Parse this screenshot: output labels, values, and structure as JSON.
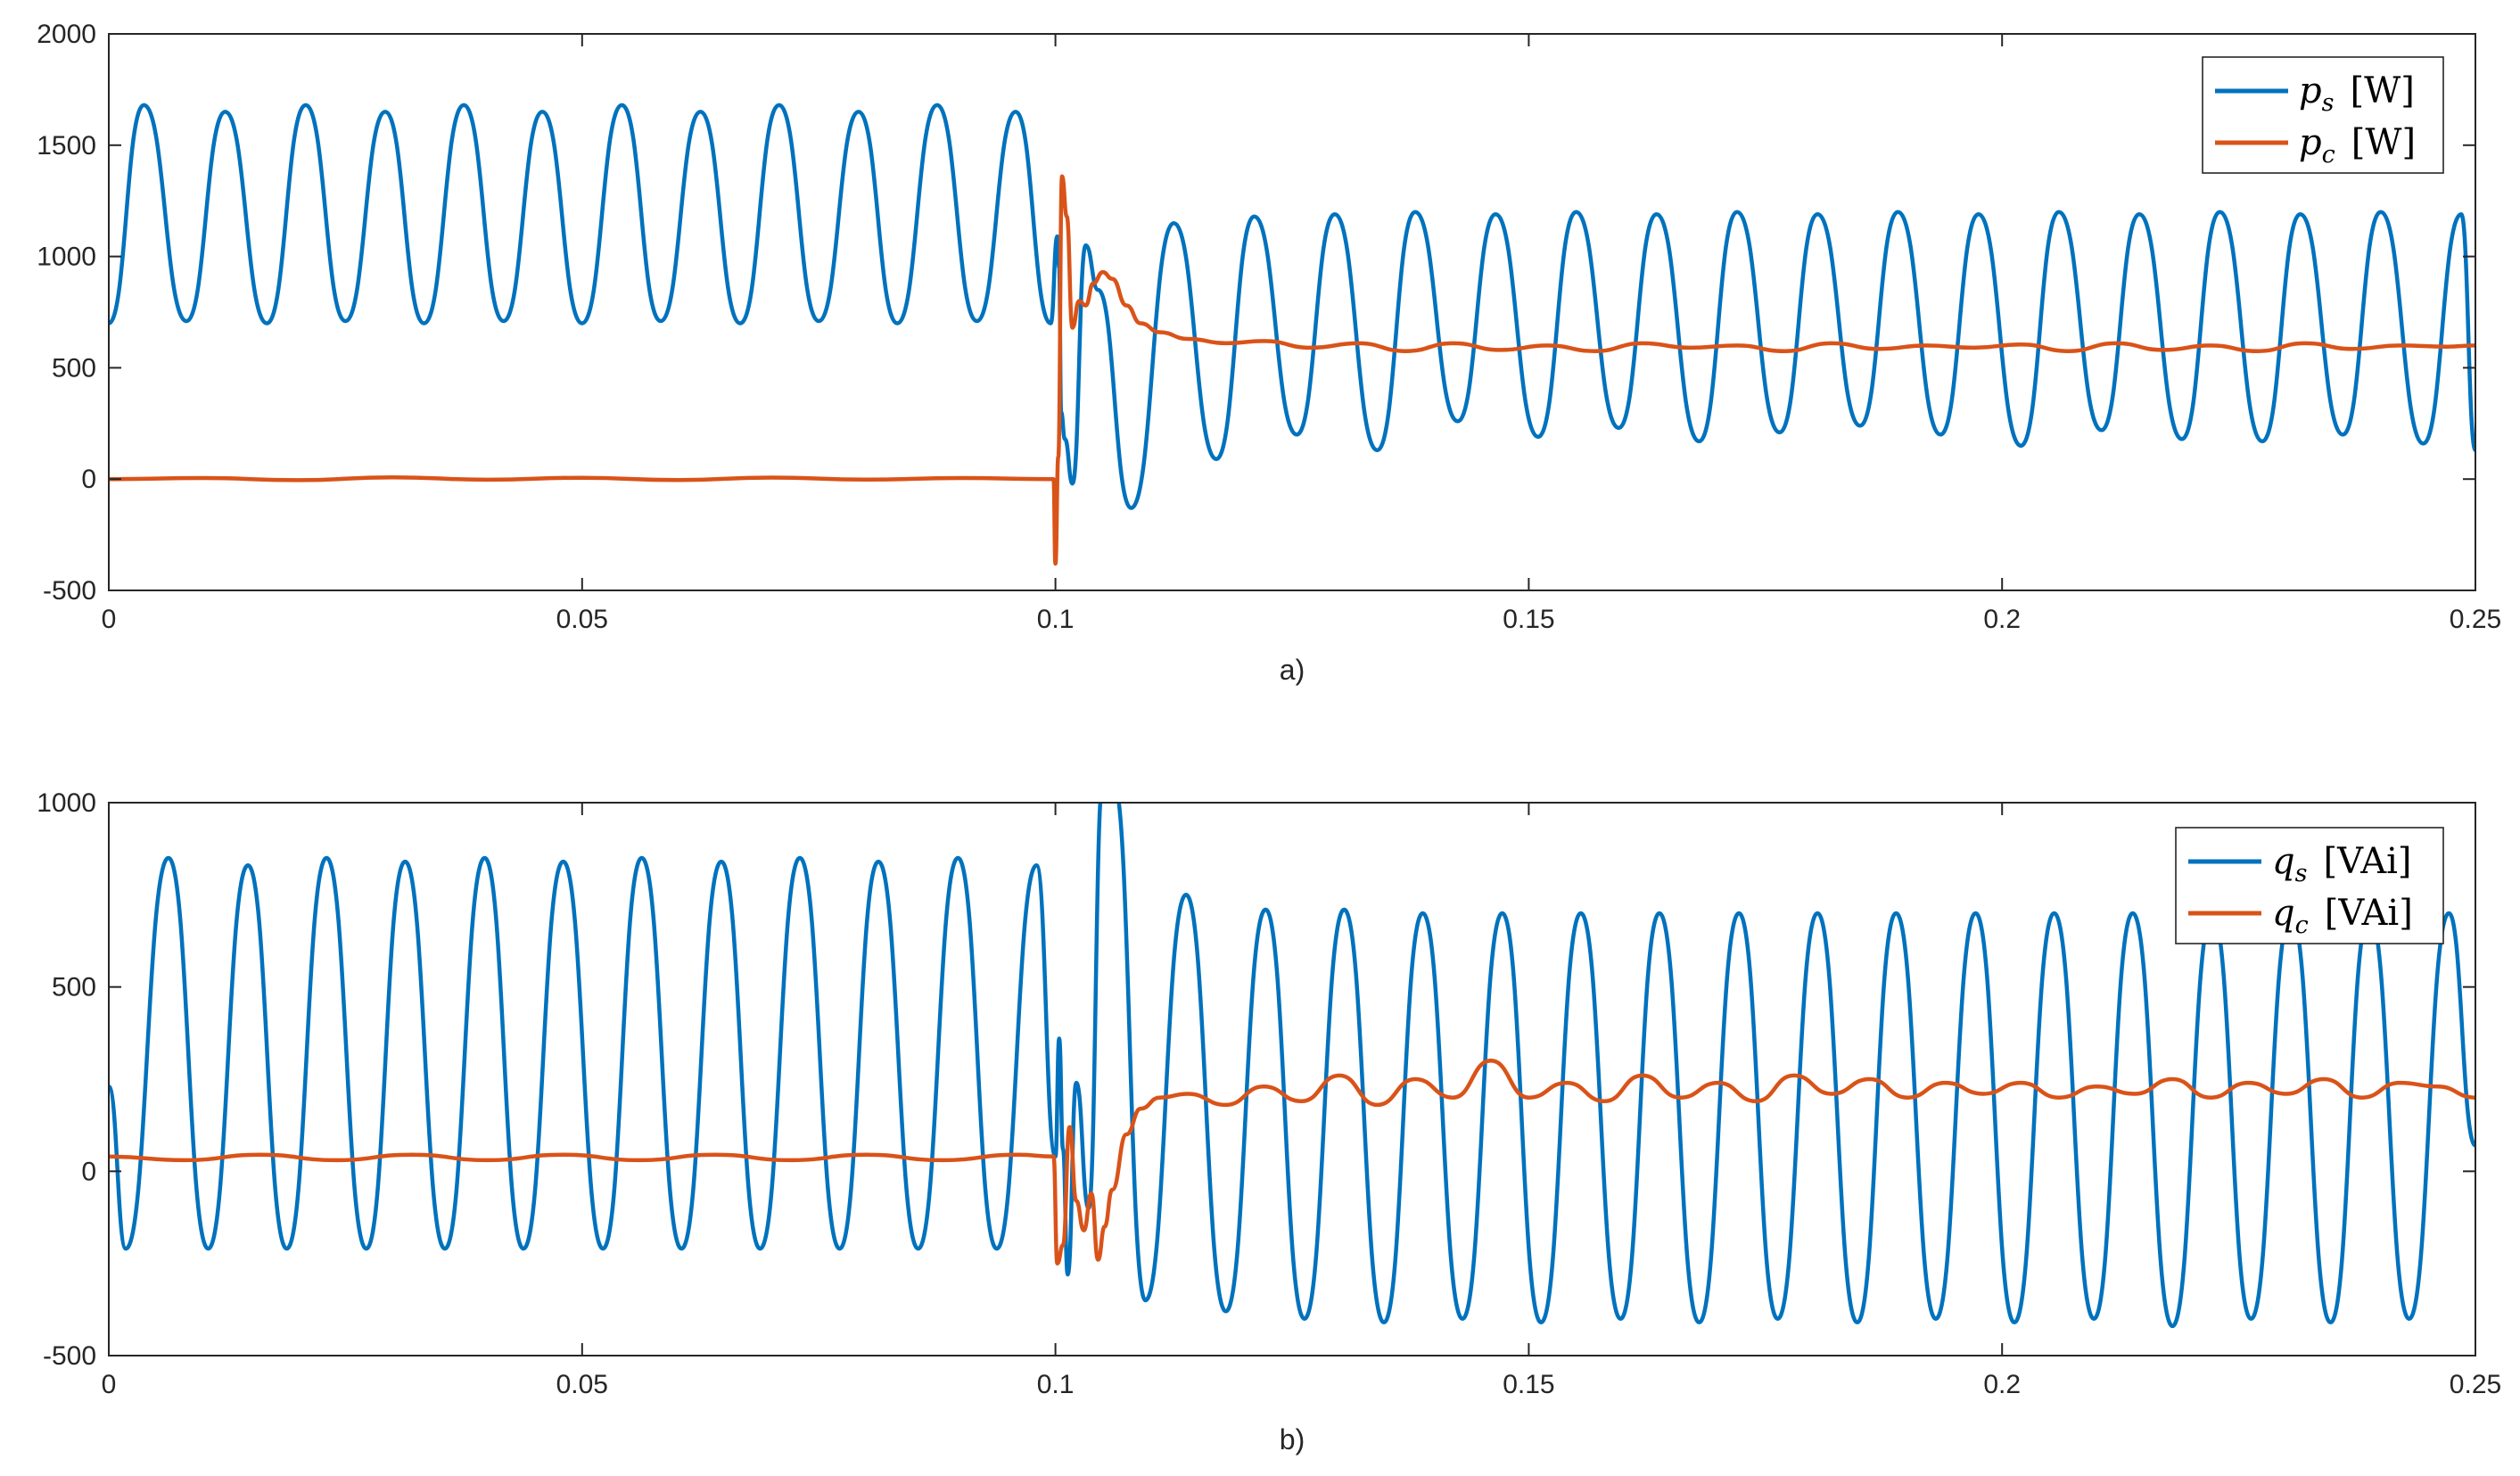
{
  "colors": {
    "series_s": "#0072BD",
    "series_c": "#D95319",
    "axis": "#262626",
    "background": "#ffffff"
  },
  "chart_data": [
    {
      "type": "line",
      "caption": "a)",
      "xlim": [
        0,
        0.25
      ],
      "ylim": [
        -500,
        2000
      ],
      "xticks": [
        "0",
        "0.05",
        "0.1",
        "0.15",
        "0.2",
        "0.25"
      ],
      "yticks": [
        "-500",
        "0",
        "500",
        "1000",
        "1500",
        "2000"
      ],
      "grid": false,
      "legend_position": "top-right",
      "series": [
        {
          "name": "p_s [W]",
          "legend": {
            "var": "p",
            "sub": "s",
            "unit": "[W]"
          },
          "color": "#0072BD",
          "x": [
            0,
            0.0037,
            0.0082,
            0.0123,
            0.0167,
            0.0208,
            0.025,
            0.0292,
            0.0333,
            0.0375,
            0.0417,
            0.0458,
            0.05,
            0.0542,
            0.0583,
            0.0625,
            0.0667,
            0.0708,
            0.075,
            0.0792,
            0.0833,
            0.0875,
            0.0917,
            0.0958,
            0.0995,
            0.1002,
            0.1004,
            0.1006,
            0.101,
            0.1018,
            0.1032,
            0.1045,
            0.108,
            0.1125,
            0.117,
            0.121,
            0.1255,
            0.1295,
            0.134,
            0.138,
            0.1425,
            0.1465,
            0.151,
            0.155,
            0.1595,
            0.1635,
            0.168,
            0.172,
            0.1765,
            0.1805,
            0.185,
            0.189,
            0.1935,
            0.1975,
            0.202,
            0.206,
            0.2105,
            0.2145,
            0.219,
            0.223,
            0.2275,
            0.2315,
            0.236,
            0.24,
            0.2445,
            0.2485,
            0.25
          ],
          "y": [
            700,
            1680,
            710,
            1650,
            700,
            1680,
            710,
            1650,
            700,
            1680,
            710,
            1650,
            700,
            1680,
            710,
            1650,
            700,
            1680,
            710,
            1650,
            700,
            1680,
            710,
            1650,
            700,
            1090,
            950,
            300,
            180,
            -20,
            1050,
            850,
            -130,
            1150,
            90,
            1180,
            200,
            1190,
            130,
            1200,
            260,
            1190,
            190,
            1200,
            230,
            1190,
            170,
            1200,
            210,
            1190,
            240,
            1200,
            200,
            1190,
            150,
            1200,
            220,
            1190,
            180,
            1200,
            170,
            1190,
            200,
            1200,
            160,
            1190,
            130
          ]
        },
        {
          "name": "p_c [W]",
          "legend": {
            "var": "p",
            "sub": "c",
            "unit": "[W]"
          },
          "color": "#D95319",
          "x": [
            0,
            0.01,
            0.02,
            0.03,
            0.04,
            0.05,
            0.06,
            0.07,
            0.08,
            0.09,
            0.0998,
            0.1,
            0.1003,
            0.1007,
            0.1012,
            0.1018,
            0.1025,
            0.1032,
            0.104,
            0.105,
            0.106,
            0.1075,
            0.109,
            0.111,
            0.114,
            0.118,
            0.122,
            0.127,
            0.132,
            0.137,
            0.142,
            0.147,
            0.152,
            0.157,
            0.162,
            0.167,
            0.172,
            0.177,
            0.182,
            0.187,
            0.192,
            0.197,
            0.202,
            0.207,
            0.212,
            0.217,
            0.222,
            0.227,
            0.232,
            0.237,
            0.242,
            0.247,
            0.25
          ],
          "y": [
            0,
            5,
            -5,
            8,
            -3,
            6,
            -4,
            7,
            -2,
            5,
            0,
            -380,
            100,
            1360,
            1180,
            680,
            800,
            780,
            880,
            930,
            900,
            780,
            700,
            660,
            630,
            610,
            620,
            590,
            610,
            575,
            610,
            580,
            600,
            575,
            610,
            590,
            600,
            575,
            610,
            585,
            600,
            590,
            605,
            575,
            610,
            580,
            600,
            575,
            610,
            585,
            600,
            595,
            600
          ]
        }
      ]
    },
    {
      "type": "line",
      "caption": "b)",
      "xlim": [
        0,
        0.25
      ],
      "ylim": [
        -500,
        1000
      ],
      "xticks": [
        "0",
        "0.05",
        "0.1",
        "0.15",
        "0.2",
        "0.25"
      ],
      "yticks": [
        "-500",
        "0",
        "500",
        "1000"
      ],
      "grid": false,
      "legend_position": "top-right",
      "series": [
        {
          "name": "q_s [VAi]",
          "legend": {
            "var": "q",
            "sub": "s",
            "unit": "[VAi]"
          },
          "color": "#0072BD",
          "x": [
            0,
            0.0018,
            0.0063,
            0.0105,
            0.0147,
            0.0188,
            0.023,
            0.0272,
            0.0313,
            0.0355,
            0.0397,
            0.0438,
            0.048,
            0.0522,
            0.0563,
            0.0605,
            0.0647,
            0.0688,
            0.073,
            0.0772,
            0.0813,
            0.0855,
            0.0897,
            0.0938,
            0.098,
            0.1,
            0.1004,
            0.1008,
            0.1013,
            0.1022,
            0.1035,
            0.105,
            0.1062,
            0.1095,
            0.1138,
            0.118,
            0.1222,
            0.1263,
            0.1305,
            0.1347,
            0.1388,
            0.143,
            0.1472,
            0.1513,
            0.1555,
            0.1597,
            0.1638,
            0.168,
            0.1722,
            0.1763,
            0.1805,
            0.1847,
            0.1888,
            0.193,
            0.1972,
            0.2013,
            0.2055,
            0.2097,
            0.2138,
            0.218,
            0.2222,
            0.2263,
            0.2305,
            0.2347,
            0.2388,
            0.243,
            0.2472,
            0.25
          ],
          "y": [
            230,
            -210,
            850,
            -210,
            830,
            -210,
            850,
            -210,
            840,
            -210,
            850,
            -210,
            840,
            -210,
            850,
            -210,
            840,
            -210,
            850,
            -210,
            840,
            -210,
            850,
            -210,
            830,
            40,
            360,
            60,
            -280,
            240,
            -100,
            1060,
            1050,
            -350,
            750,
            -380,
            710,
            -400,
            710,
            -410,
            700,
            -400,
            700,
            -410,
            700,
            -400,
            700,
            -410,
            700,
            -400,
            700,
            -410,
            700,
            -400,
            700,
            -410,
            700,
            -400,
            700,
            -420,
            700,
            -400,
            700,
            -410,
            700,
            -400,
            700,
            70
          ]
        },
        {
          "name": "q_c [VAi]",
          "legend": {
            "var": "q",
            "sub": "c",
            "unit": "[VAi]"
          },
          "color": "#D95319",
          "x": [
            0,
            0.008,
            0.016,
            0.024,
            0.032,
            0.04,
            0.048,
            0.056,
            0.064,
            0.072,
            0.08,
            0.088,
            0.096,
            0.0998,
            0.1002,
            0.1008,
            0.1015,
            0.1022,
            0.103,
            0.1038,
            0.1045,
            0.1052,
            0.106,
            0.1075,
            0.109,
            0.111,
            0.114,
            0.118,
            0.122,
            0.126,
            0.13,
            0.134,
            0.138,
            0.142,
            0.146,
            0.15,
            0.154,
            0.158,
            0.162,
            0.166,
            0.17,
            0.174,
            0.178,
            0.182,
            0.186,
            0.19,
            0.194,
            0.198,
            0.202,
            0.206,
            0.21,
            0.214,
            0.218,
            0.222,
            0.226,
            0.23,
            0.234,
            0.238,
            0.242,
            0.246,
            0.25
          ],
          "y": [
            40,
            30,
            45,
            30,
            45,
            30,
            45,
            30,
            45,
            30,
            45,
            30,
            45,
            40,
            -250,
            -200,
            120,
            -80,
            -160,
            -60,
            -240,
            -150,
            -50,
            100,
            170,
            200,
            210,
            180,
            230,
            190,
            260,
            180,
            250,
            200,
            300,
            200,
            240,
            190,
            260,
            200,
            240,
            190,
            260,
            210,
            250,
            200,
            240,
            210,
            240,
            200,
            230,
            210,
            250,
            200,
            240,
            210,
            250,
            200,
            240,
            230,
            200
          ]
        }
      ]
    }
  ]
}
